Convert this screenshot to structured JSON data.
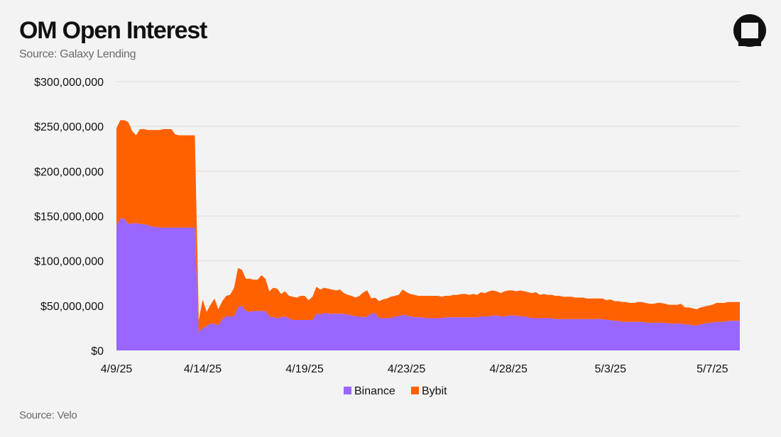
{
  "header": {
    "title": "OM Open Interest",
    "subtitle": "Source: Galaxy Lending"
  },
  "footer": {
    "source": "Source: Velo"
  },
  "colors": {
    "binance": "#9966ff",
    "bybit": "#ff6100",
    "grid": "#dddddd",
    "background": "#f3f3f3"
  },
  "logo": {
    "icon": "galaxy-logo-icon"
  },
  "chart_data": {
    "type": "area",
    "stacked": true,
    "title": "OM Open Interest",
    "xlabel": "",
    "ylabel": "",
    "ylim": [
      0,
      300000000
    ],
    "y_ticks": [
      0,
      50000000,
      100000000,
      150000000,
      200000000,
      250000000,
      300000000
    ],
    "y_tick_labels": [
      "$0",
      "$50,000,000",
      "$100,000,000",
      "$150,000,000",
      "$200,000,000",
      "$250,000,000",
      "$300,000,000"
    ],
    "x_tick_labels": [
      "4/9/25",
      "4/14/25",
      "4/19/25",
      "4/23/25",
      "4/28/25",
      "5/3/25",
      "5/7/25"
    ],
    "x_tick_index": [
      0,
      22,
      48,
      74,
      100,
      126,
      152
    ],
    "grid": true,
    "legend_position": "bottom",
    "series": [
      {
        "name": "Binance",
        "color": "#9966ff",
        "values": [
          140000000,
          147000000,
          147000000,
          141000000,
          142000000,
          142000000,
          141000000,
          141000000,
          140000000,
          138000000,
          138000000,
          137000000,
          137000000,
          137000000,
          137000000,
          137000000,
          137000000,
          137000000,
          137000000,
          137000000,
          137000000,
          20000000,
          25000000,
          27000000,
          30000000,
          30000000,
          28000000,
          35000000,
          38000000,
          38000000,
          38000000,
          48000000,
          50000000,
          44000000,
          43000000,
          44000000,
          44000000,
          44000000,
          44000000,
          38000000,
          37000000,
          36000000,
          37000000,
          38000000,
          36000000,
          34000000,
          34000000,
          34000000,
          34000000,
          34000000,
          34000000,
          41000000,
          40000000,
          42000000,
          41000000,
          41000000,
          41000000,
          41000000,
          41000000,
          40000000,
          39000000,
          38000000,
          38000000,
          37000000,
          38000000,
          41000000,
          42000000,
          36000000,
          36000000,
          36000000,
          36000000,
          38000000,
          38000000,
          40000000,
          39000000,
          38000000,
          37000000,
          37000000,
          37000000,
          36000000,
          36000000,
          36000000,
          36000000,
          36000000,
          37000000,
          37000000,
          37000000,
          37000000,
          37000000,
          37000000,
          37000000,
          37000000,
          37000000,
          38000000,
          38000000,
          38000000,
          39000000,
          39000000,
          38000000,
          38000000,
          39000000,
          39000000,
          39000000,
          38000000,
          38000000,
          37000000,
          36000000,
          36000000,
          36000000,
          36000000,
          36000000,
          36000000,
          35000000,
          35000000,
          35000000,
          35000000,
          35000000,
          35000000,
          35000000,
          35000000,
          35000000,
          35000000,
          35000000,
          35000000,
          35000000,
          34000000,
          34000000,
          33000000,
          33000000,
          32000000,
          32000000,
          32000000,
          32000000,
          32000000,
          32000000,
          31000000,
          31000000,
          31000000,
          31000000,
          31000000,
          31000000,
          30000000,
          30000000,
          30000000,
          30000000,
          29000000,
          29000000,
          28000000,
          28000000,
          29000000,
          30000000,
          31000000,
          31000000,
          32000000,
          32000000,
          32000000,
          33000000,
          33000000,
          33000000,
          33000000
        ]
      },
      {
        "name": "Bybit",
        "color": "#ff6100",
        "values": [
          108000000,
          110000000,
          110000000,
          114000000,
          103000000,
          98000000,
          106000000,
          106000000,
          106000000,
          108000000,
          108000000,
          109000000,
          110000000,
          110000000,
          110000000,
          104000000,
          103000000,
          103000000,
          103000000,
          103000000,
          103000000,
          14000000,
          32000000,
          16000000,
          21000000,
          28000000,
          18000000,
          20000000,
          23000000,
          24000000,
          32000000,
          44000000,
          40000000,
          36000000,
          37000000,
          35000000,
          35000000,
          40000000,
          36000000,
          28000000,
          33000000,
          33000000,
          26000000,
          28000000,
          25000000,
          26000000,
          25000000,
          27000000,
          27000000,
          22000000,
          26000000,
          30000000,
          28000000,
          28000000,
          28000000,
          27000000,
          26000000,
          27000000,
          23000000,
          22000000,
          22000000,
          21000000,
          23000000,
          28000000,
          29000000,
          17000000,
          17000000,
          19000000,
          21000000,
          22000000,
          24000000,
          23000000,
          24000000,
          28000000,
          26000000,
          25000000,
          25000000,
          24000000,
          24000000,
          25000000,
          25000000,
          25000000,
          25000000,
          24000000,
          24000000,
          24000000,
          25000000,
          25000000,
          26000000,
          26000000,
          25000000,
          26000000,
          25000000,
          27000000,
          26000000,
          28000000,
          28000000,
          27000000,
          26000000,
          28000000,
          28000000,
          28000000,
          27000000,
          29000000,
          28000000,
          28000000,
          28000000,
          29000000,
          26000000,
          27000000,
          26000000,
          26000000,
          26000000,
          26000000,
          25000000,
          25000000,
          25000000,
          24000000,
          24000000,
          24000000,
          23000000,
          23000000,
          23000000,
          23000000,
          23000000,
          22000000,
          23000000,
          22000000,
          22000000,
          22000000,
          22000000,
          21000000,
          21000000,
          22000000,
          22000000,
          22000000,
          21000000,
          21000000,
          22000000,
          22000000,
          21000000,
          21000000,
          21000000,
          21000000,
          22000000,
          19000000,
          19000000,
          19000000,
          18000000,
          19000000,
          19000000,
          19000000,
          20000000,
          21000000,
          21000000,
          21000000,
          21000000,
          21000000,
          21000000,
          21000000,
          20000000,
          20000000
        ]
      }
    ]
  }
}
